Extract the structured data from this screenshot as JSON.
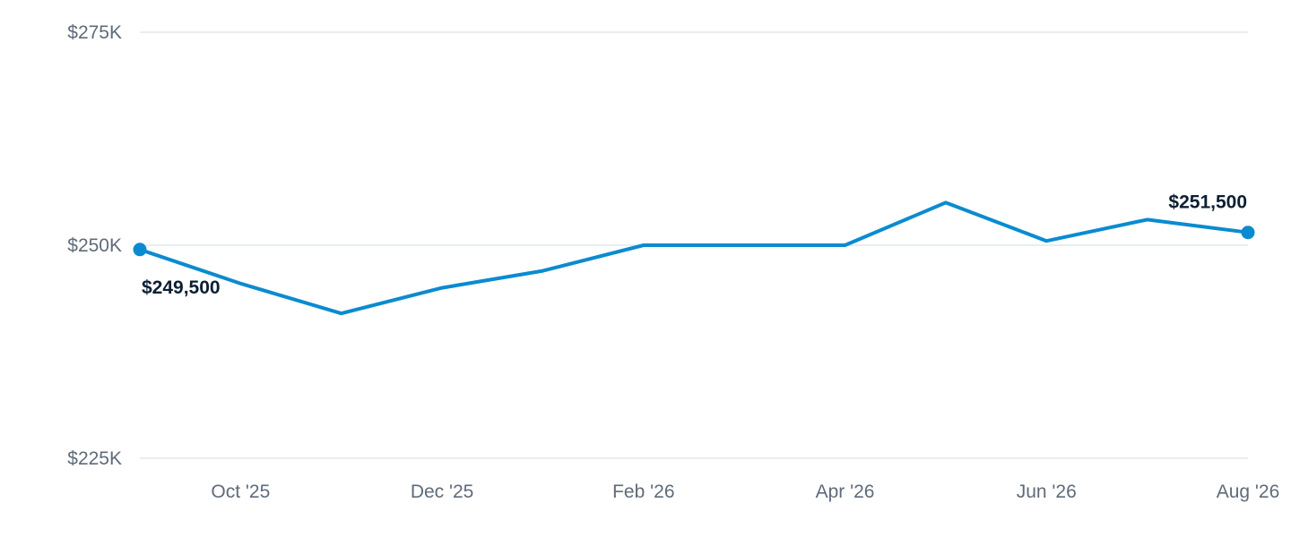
{
  "chart_data": {
    "type": "line",
    "title": "",
    "xlabel": "",
    "ylabel": "",
    "series": [
      {
        "points": [
          {
            "x": "2025-09",
            "y": 249500
          },
          {
            "x": "2025-10",
            "y": 245500
          },
          {
            "x": "2025-11",
            "y": 242000
          },
          {
            "x": "2025-12",
            "y": 245000
          },
          {
            "x": "2026-01",
            "y": 247000
          },
          {
            "x": "2026-02",
            "y": 250000
          },
          {
            "x": "2026-03",
            "y": 250000
          },
          {
            "x": "2026-04",
            "y": 250000
          },
          {
            "x": "2026-05",
            "y": 255000
          },
          {
            "x": "2026-06",
            "y": 250500
          },
          {
            "x": "2026-07",
            "y": 253000
          },
          {
            "x": "2026-08",
            "y": 251500
          }
        ],
        "color": "#0a8bd0"
      }
    ],
    "ylim": [
      225000,
      275000
    ],
    "y_ticks": [
      {
        "value": 275000,
        "label": "$275K"
      },
      {
        "value": 250000,
        "label": "$250K"
      },
      {
        "value": 225000,
        "label": "$225K"
      }
    ],
    "x_ticks": [
      {
        "x": "2025-10",
        "label": "Oct '25"
      },
      {
        "x": "2025-12",
        "label": "Dec '25"
      },
      {
        "x": "2026-02",
        "label": "Feb '26"
      },
      {
        "x": "2026-04",
        "label": "Apr '26"
      },
      {
        "x": "2026-06",
        "label": "Jun '26"
      },
      {
        "x": "2026-08",
        "label": "Aug '26"
      }
    ],
    "point_labels": [
      {
        "x": "2025-09",
        "label": "$249,500",
        "position": "below"
      },
      {
        "x": "2026-08",
        "label": "$251,500",
        "position": "above"
      }
    ],
    "grid": true,
    "legend": "none"
  }
}
